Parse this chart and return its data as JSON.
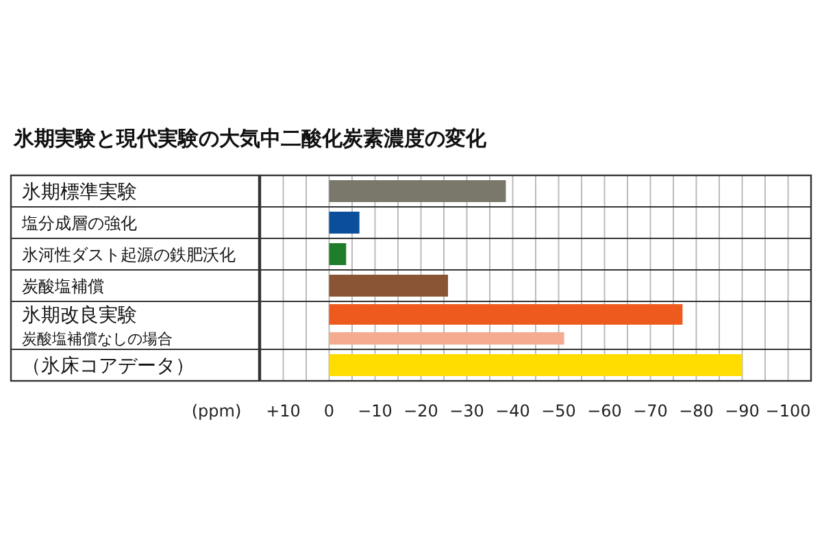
{
  "chart_data": {
    "type": "bar",
    "orientation": "horizontal",
    "title": "氷期実験と現代実験の大気中二酸化炭素濃度の変化",
    "xlabel": "(ppm)",
    "categories": [
      "氷期標準実験",
      "塩分成層の強化",
      "氷河性ダスト起源の鉄肥沃化",
      "炭酸塩補償",
      "氷期改良実験",
      "炭酸塩補償なしの場合",
      "（氷床コアデータ）"
    ],
    "values": [
      -38.5,
      -6.6,
      -3.7,
      -25.9,
      -77,
      -51.2,
      -90
    ],
    "colors": [
      "#7a776b",
      "#0b4f9c",
      "#1f7d2a",
      "#8a5535",
      "#ee5a1d",
      "#f4ab90",
      "#ffdd00"
    ],
    "xlim": [
      15,
      -105
    ],
    "xticks": [
      {
        "value": 10,
        "label": "+10"
      },
      {
        "value": 5,
        "label": null
      },
      0,
      {
        "value": -5,
        "label": null
      },
      {
        "value": -10,
        "label": "−10"
      },
      {
        "value": -15,
        "label": null
      },
      {
        "value": -20,
        "label": "−20"
      },
      {
        "value": -25,
        "label": null
      },
      {
        "value": -30,
        "label": "−30"
      },
      {
        "value": -35,
        "label": null
      },
      {
        "value": -40,
        "label": "−40"
      },
      {
        "value": -45,
        "label": null
      },
      {
        "value": -50,
        "label": "−50"
      },
      {
        "value": -55,
        "label": null
      },
      {
        "value": -60,
        "label": "−60"
      },
      {
        "value": -65,
        "label": null
      },
      {
        "value": -70,
        "label": "−70"
      },
      {
        "value": -75,
        "label": null
      },
      {
        "value": -80,
        "label": "−80"
      },
      {
        "value": -85,
        "label": null
      },
      {
        "value": -90,
        "label": "−90"
      },
      {
        "value": -95,
        "label": null
      },
      {
        "value": -100,
        "label": "−100"
      }
    ],
    "grid": "x"
  }
}
